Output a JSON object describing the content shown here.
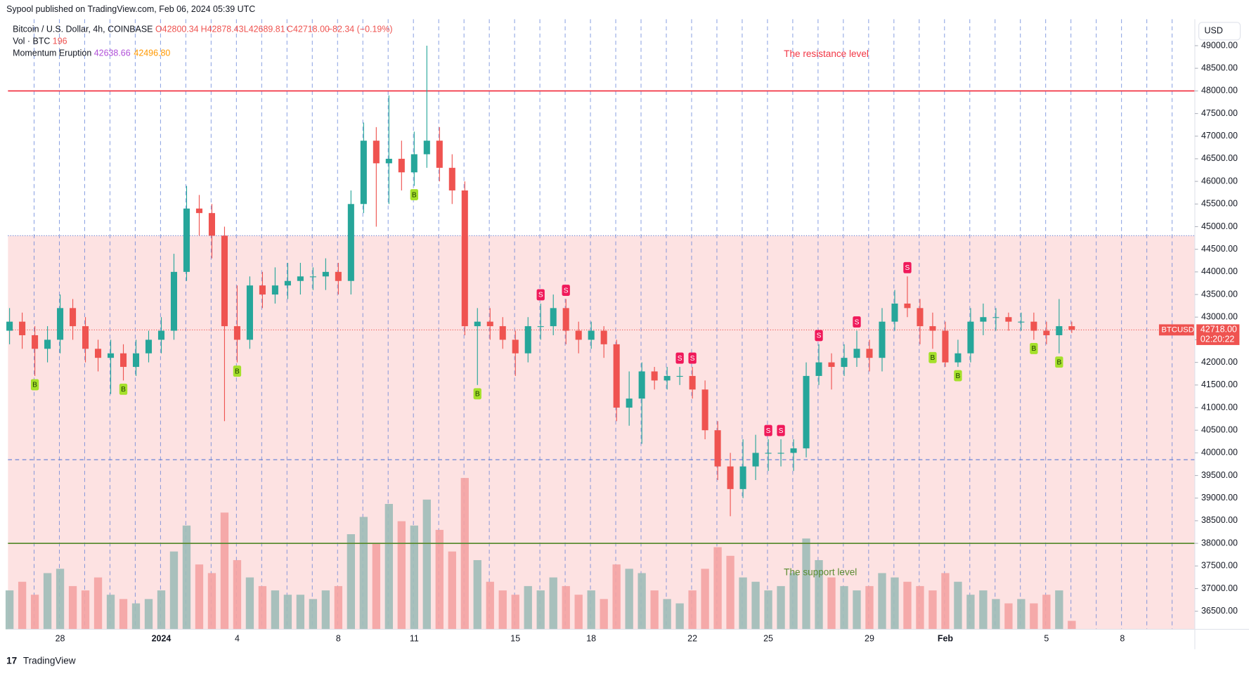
{
  "publisher": "Sypool published on TradingView.com, Feb 06, 2024 05:39 UTC",
  "header": {
    "symbol": "Bitcoin / U.S. Dollar, 4h, COINBASE",
    "open": "O42800.34",
    "high": "H42878.43",
    "low": "L42689.81",
    "close": "C42718.00",
    "change": "−82.34 (−0.19%)",
    "volume_name": "Vol · BTC",
    "volume_value": "196",
    "indicator_name": "Momentum Eruption",
    "indicator_fast": "42638.66",
    "indicator_slow": "42496.80"
  },
  "currency_button": "USD",
  "price_label": {
    "symbol": "BTCUSD",
    "price": "42718.00",
    "countdown": "02:20:22"
  },
  "footer": "TradingView",
  "chart_data": {
    "type": "candlestick",
    "date_labels": [
      "28",
      "2024",
      "4",
      "8",
      "11",
      "15",
      "18",
      "22",
      "25",
      "29",
      "Feb",
      "5",
      "8"
    ],
    "ylim": [
      36100,
      49585
    ],
    "yticks": [
      {
        "value": 36500,
        "label": "36500.00"
      },
      {
        "value": 37000,
        "label": "37000.00"
      },
      {
        "value": 37500,
        "label": "37500.00"
      },
      {
        "value": 38000,
        "label": "38000.00"
      },
      {
        "value": 38500,
        "label": "38500.00"
      },
      {
        "value": 39000,
        "label": "39000.00"
      },
      {
        "value": 39500,
        "label": "39500.00"
      },
      {
        "value": 40000,
        "label": "40000.00"
      },
      {
        "value": 40500,
        "label": "40500.00"
      },
      {
        "value": 41000,
        "label": "41000.00"
      },
      {
        "value": 41500,
        "label": "41500.00"
      },
      {
        "value": 42000,
        "label": "42000.00"
      },
      {
        "value": 42500,
        "label": "42500.00"
      },
      {
        "value": 43000,
        "label": "43000.00"
      },
      {
        "value": 43500,
        "label": "43500.00"
      },
      {
        "value": 44000,
        "label": "44000.00"
      },
      {
        "value": 44500,
        "label": "44500.00"
      },
      {
        "value": 45000,
        "label": "45000.00"
      },
      {
        "value": 45500,
        "label": "45500.00"
      },
      {
        "value": 46000,
        "label": "46000.00"
      },
      {
        "value": 46500,
        "label": "46500.00"
      },
      {
        "value": 47000,
        "label": "47000.00"
      },
      {
        "value": 47500,
        "label": "47500.00"
      },
      {
        "value": 48000,
        "label": "48000.00"
      },
      {
        "value": 48500,
        "label": "48500.00"
      },
      {
        "value": 49000,
        "label": "49000.00"
      }
    ],
    "up_color": "#26a69a",
    "down_color": "#ef5350",
    "open": [
      42700,
      42900,
      42600,
      42300,
      42500,
      43200,
      42800,
      42300,
      42100,
      42200,
      41900,
      42200,
      42500,
      42700,
      44000,
      45400,
      45300,
      44800,
      42800,
      42500,
      43700,
      43500,
      43700,
      43800,
      43900,
      43900,
      44000,
      43800,
      45500,
      46900,
      46400,
      46500,
      46200,
      46600,
      46900,
      46300,
      45800,
      42800,
      42900,
      42800,
      42500,
      42200,
      42800,
      42800,
      43200,
      42700,
      42500,
      42700,
      42400,
      41000,
      41200,
      41800,
      41600,
      41700,
      41700,
      41400,
      40500,
      39700,
      39200,
      39700,
      40000,
      40000,
      40000,
      40100,
      41700,
      42000,
      41900,
      42100,
      42300,
      42100,
      42900,
      43300,
      43200,
      42800,
      42700,
      42000,
      42200,
      42900,
      43000,
      43000,
      42900,
      42900,
      42700,
      42600,
      42800
    ],
    "high": [
      43200,
      43100,
      42800,
      42800,
      43500,
      43400,
      43000,
      42500,
      42500,
      42400,
      42500,
      42700,
      43000,
      44400,
      45900,
      45700,
      45500,
      45000,
      43700,
      43900,
      44000,
      44100,
      44200,
      44200,
      44100,
      44300,
      44200,
      45800,
      47300,
      47200,
      47900,
      46900,
      47100,
      49000,
      47200,
      46600,
      46000,
      43200,
      43200,
      43000,
      42700,
      43000,
      43300,
      43500,
      43400,
      42900,
      42900,
      42800,
      42500,
      41800,
      42000,
      41900,
      41900,
      41900,
      41900,
      41600,
      40700,
      40000,
      40300,
      40400,
      40300,
      40300,
      40300,
      42000,
      42400,
      42200,
      42400,
      42700,
      42500,
      43200,
      43600,
      43900,
      43400,
      43100,
      42900,
      42500,
      43200,
      43300,
      43200,
      43100,
      43100,
      43100,
      42900,
      43400,
      42900
    ],
    "low": [
      42400,
      42300,
      41700,
      42000,
      42200,
      42500,
      42000,
      41800,
      41300,
      41600,
      41700,
      42000,
      42200,
      42500,
      43800,
      44800,
      44300,
      40700,
      42000,
      42300,
      43200,
      43300,
      43400,
      43500,
      43600,
      43600,
      43500,
      43500,
      45300,
      45000,
      45500,
      45800,
      45900,
      46300,
      46000,
      45500,
      42600,
      41500,
      42500,
      42300,
      41700,
      42000,
      42500,
      42600,
      42400,
      42200,
      42300,
      42100,
      40700,
      40600,
      40200,
      41400,
      41400,
      41500,
      41200,
      40300,
      39400,
      38600,
      39000,
      39400,
      39600,
      39700,
      39600,
      39900,
      41500,
      41400,
      41700,
      41900,
      41800,
      41800,
      42700,
      43000,
      42400,
      42300,
      41900,
      41900,
      42000,
      42600,
      42700,
      42700,
      42700,
      42500,
      42400,
      42200,
      42650
    ],
    "close": [
      42900,
      42600,
      42300,
      42500,
      43200,
      42800,
      42300,
      42100,
      42200,
      41900,
      42200,
      42500,
      42700,
      44000,
      45400,
      45300,
      44800,
      42800,
      42500,
      43700,
      43500,
      43700,
      43800,
      43900,
      43900,
      44000,
      43800,
      45500,
      46900,
      46400,
      46500,
      46200,
      46600,
      46900,
      46300,
      45800,
      42800,
      42900,
      42800,
      42500,
      42200,
      42800,
      42800,
      43200,
      42700,
      42500,
      42700,
      42400,
      41000,
      41200,
      41800,
      41600,
      41700,
      41700,
      41400,
      40500,
      39700,
      39200,
      39700,
      40000,
      40000,
      40000,
      40100,
      41700,
      42000,
      41900,
      42100,
      42300,
      42100,
      42900,
      43300,
      43200,
      42800,
      42700,
      42000,
      42200,
      42900,
      43000,
      43000,
      42900,
      42900,
      42700,
      42600,
      42800,
      42718
    ],
    "volume": [
      900,
      1100,
      800,
      1300,
      1400,
      1000,
      900,
      1200,
      800,
      700,
      600,
      700,
      900,
      1800,
      2400,
      1500,
      1300,
      2700,
      1600,
      1200,
      1000,
      900,
      800,
      800,
      700,
      900,
      1000,
      2200,
      2600,
      2000,
      2900,
      2500,
      2400,
      3000,
      2300,
      1800,
      3500,
      1600,
      1100,
      900,
      800,
      1000,
      900,
      1200,
      1000,
      800,
      900,
      700,
      1500,
      1400,
      1300,
      900,
      700,
      600,
      900,
      1400,
      1900,
      1700,
      1200,
      1100,
      900,
      1000,
      1300,
      2100,
      1600,
      1200,
      1000,
      900,
      1000,
      1300,
      1200,
      1100,
      1000,
      900,
      1300,
      1100,
      800,
      900,
      700,
      600,
      700,
      600,
      800,
      900,
      196
    ],
    "signals": [
      null,
      null,
      "B",
      null,
      null,
      null,
      null,
      null,
      null,
      "B",
      null,
      null,
      null,
      null,
      null,
      null,
      null,
      null,
      "B",
      null,
      null,
      null,
      null,
      null,
      null,
      null,
      null,
      null,
      null,
      null,
      null,
      null,
      "B",
      null,
      null,
      null,
      null,
      "B",
      null,
      null,
      null,
      null,
      "S",
      null,
      "S",
      null,
      null,
      null,
      null,
      null,
      null,
      null,
      null,
      "S",
      "S",
      null,
      null,
      null,
      null,
      null,
      "S",
      "S",
      null,
      null,
      "S",
      null,
      null,
      "S",
      null,
      null,
      null,
      "S",
      null,
      "B",
      null,
      "B",
      null,
      null,
      null,
      null,
      null,
      "B",
      null,
      "B",
      null
    ],
    "annotations": [
      {
        "text": "The resistance level",
        "value": 48000,
        "color": "#f23645"
      },
      {
        "text": "The support level",
        "value": 38000,
        "color": "#5b8c32"
      }
    ],
    "levels": [
      {
        "value": 44800,
        "color": "#5b7bd6",
        "style": "dotted"
      },
      {
        "value": 39850,
        "color": "#5b7bd6",
        "style": "dashed"
      }
    ],
    "last_price": 42718
  }
}
